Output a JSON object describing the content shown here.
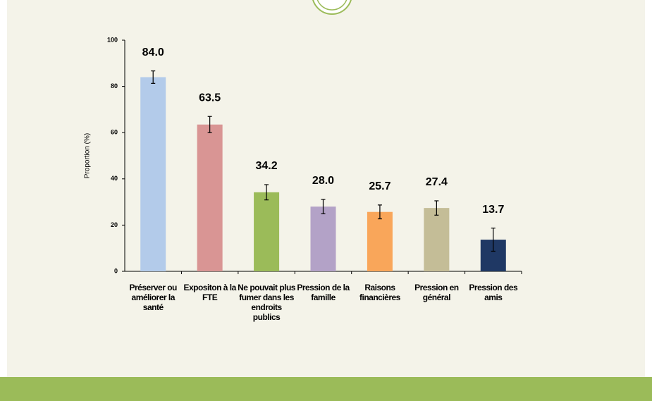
{
  "chart_data": {
    "type": "bar",
    "ylabel": "Proportion (%)",
    "categories": [
      "Préserver ou améliorer la santé",
      "Expositon à la FTE",
      "Ne pouvait plus fumer dans les endroits publics",
      "Pression de la famille",
      "Raisons financières",
      "Pression en général",
      "Pression des amis"
    ],
    "values": [
      84,
      63.5,
      34.2,
      28,
      25.7,
      27.4,
      13.7
    ],
    "value_labels": [
      "84.0",
      "63.5",
      "34.2",
      "28.0",
      "25.7",
      "27.4",
      "13.7"
    ],
    "errors": [
      2.7,
      3.5,
      3.3,
      3.1,
      3.0,
      3.1,
      5.0
    ],
    "colors": [
      "#b3cbea",
      "#d99594",
      "#9bbb59",
      "#b3a2c7",
      "#f9a65a",
      "#c4bd97",
      "#1f3864"
    ],
    "ylim": [
      0,
      100
    ],
    "yticks": [
      0,
      20,
      40,
      60,
      80,
      100
    ],
    "grid": false
  }
}
